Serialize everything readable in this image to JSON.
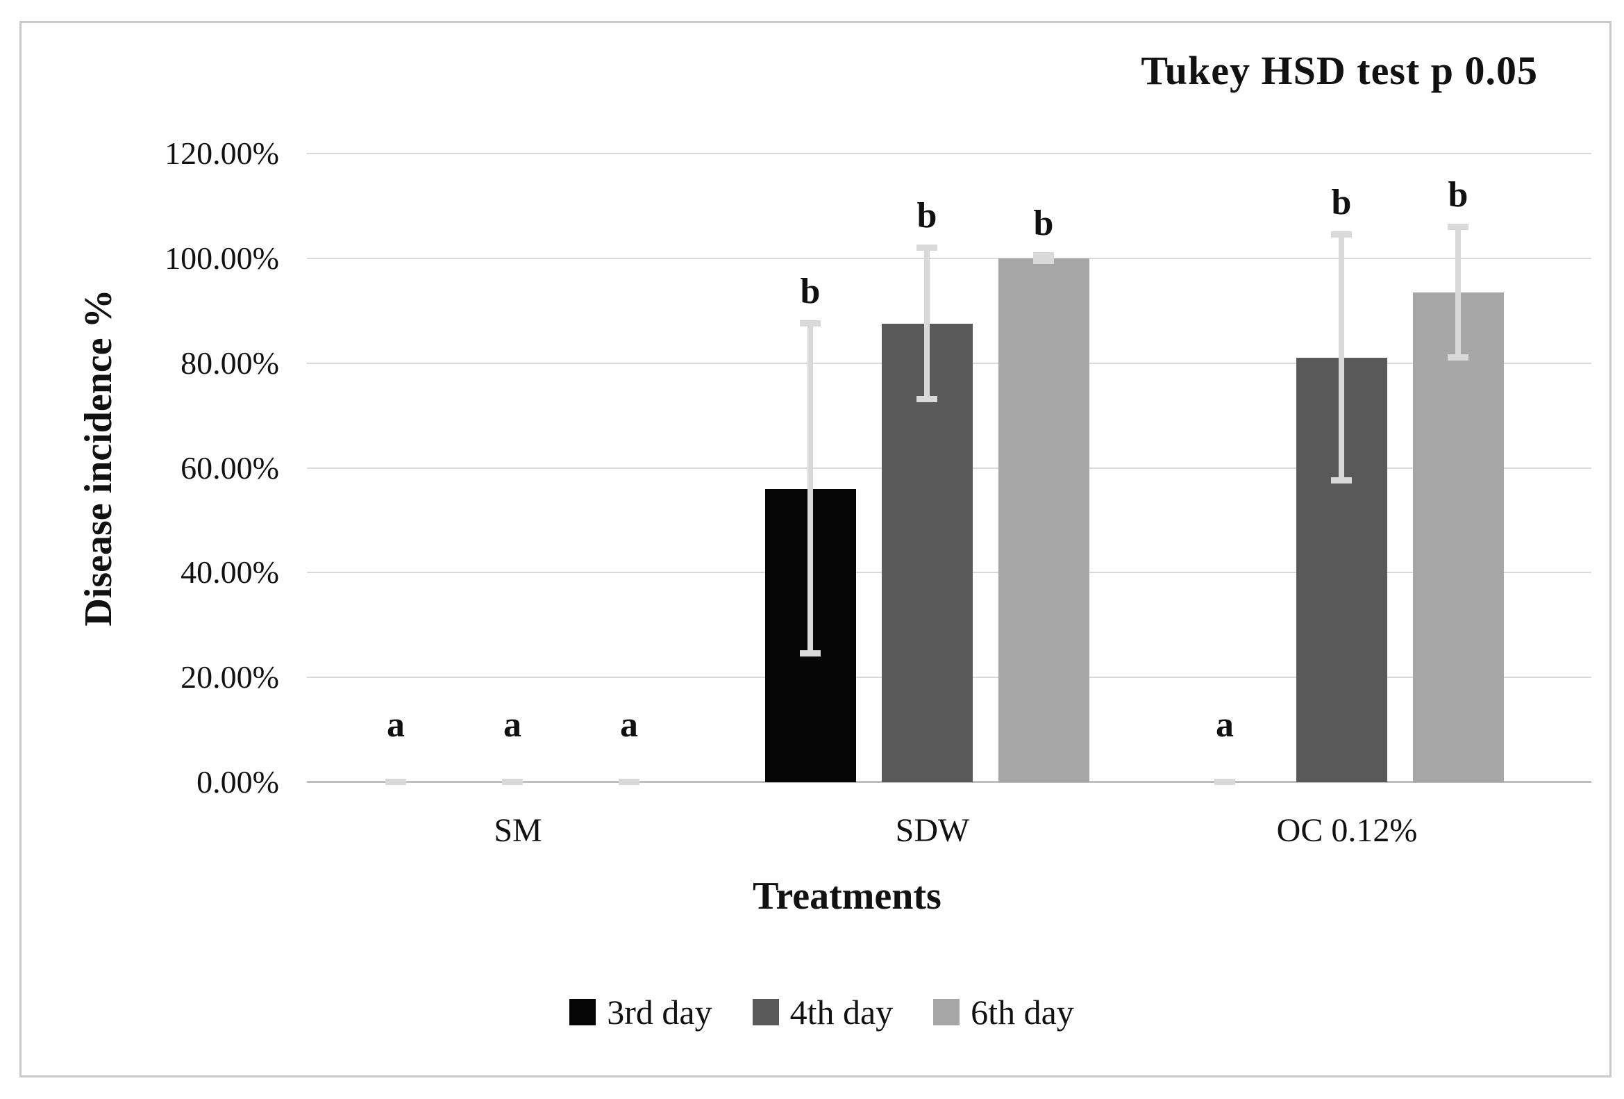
{
  "annotation": "Tukey HSD test p 0.05",
  "chart_data": {
    "type": "bar",
    "title": "Tukey HSD test p 0.05",
    "xlabel": "Treatments",
    "ylabel": "Disease incidence %",
    "categories": [
      "SM",
      "SDW",
      "OC 0.12%"
    ],
    "series": [
      {
        "name": "3rd day",
        "color": "#050505",
        "values": [
          0,
          56,
          0
        ],
        "errors": [
          0,
          31.5,
          0
        ],
        "letters": [
          "a",
          "b",
          "a"
        ]
      },
      {
        "name": "4th day",
        "color": "#595959",
        "values": [
          0,
          87.5,
          81
        ],
        "errors": [
          0,
          14.5,
          23.5
        ],
        "letters": [
          "a",
          "b",
          "b"
        ]
      },
      {
        "name": "6th day",
        "color": "#a6a6a6",
        "values": [
          0,
          100,
          93.5
        ],
        "errors": [
          0,
          0.5,
          12.5
        ],
        "letters": [
          "a",
          "b",
          "b"
        ]
      }
    ],
    "yticks": [
      "0.00%",
      "20.00%",
      "40.00%",
      "60.00%",
      "80.00%",
      "100.00%",
      "120.00%"
    ],
    "ytick_values": [
      0,
      20,
      40,
      60,
      80,
      100,
      120
    ],
    "ylim": [
      0,
      120
    ],
    "grid": true,
    "legend_position": "bottom",
    "colors": {
      "gridline": "#d9d9d9",
      "axis_line": "#bfbfbf",
      "error_bar": "#d9d9d9",
      "frame_border": "#c9c9c9"
    }
  }
}
